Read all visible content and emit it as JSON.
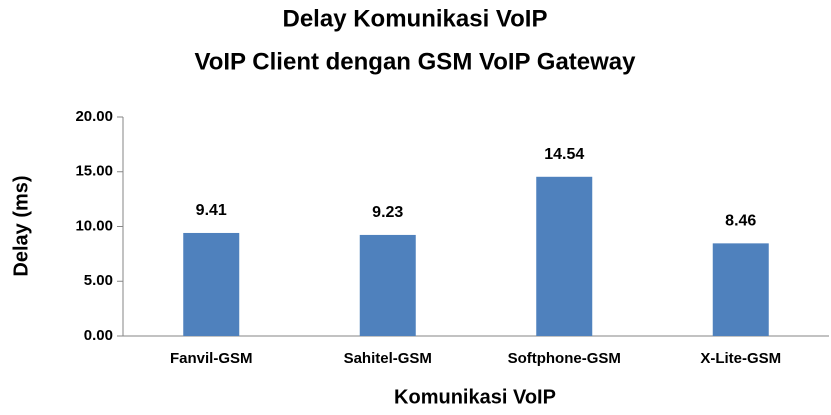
{
  "chart_data": {
    "type": "bar",
    "title": "Delay Komunikasi  VoIP",
    "subtitle": "VoIP Client dengan GSM VoIP Gateway",
    "x_label": "Komunikasi VoIP",
    "y_label": "Delay (ms)",
    "categories": [
      "Fanvil-GSM",
      "Sahitel-GSM",
      "Softphone-GSM",
      "X-Lite-GSM"
    ],
    "values": [
      9.41,
      9.23,
      14.54,
      8.46
    ],
    "color": "#4f81bd",
    "ylim": [
      0,
      20
    ],
    "yticks": [
      {
        "value": 0,
        "label": "0.00"
      },
      {
        "value": 5,
        "label": "5.00"
      },
      {
        "value": 10,
        "label": "10.00"
      },
      {
        "value": 15,
        "label": "15.00"
      },
      {
        "value": 20,
        "label": "20.00"
      }
    ],
    "grid": false
  }
}
